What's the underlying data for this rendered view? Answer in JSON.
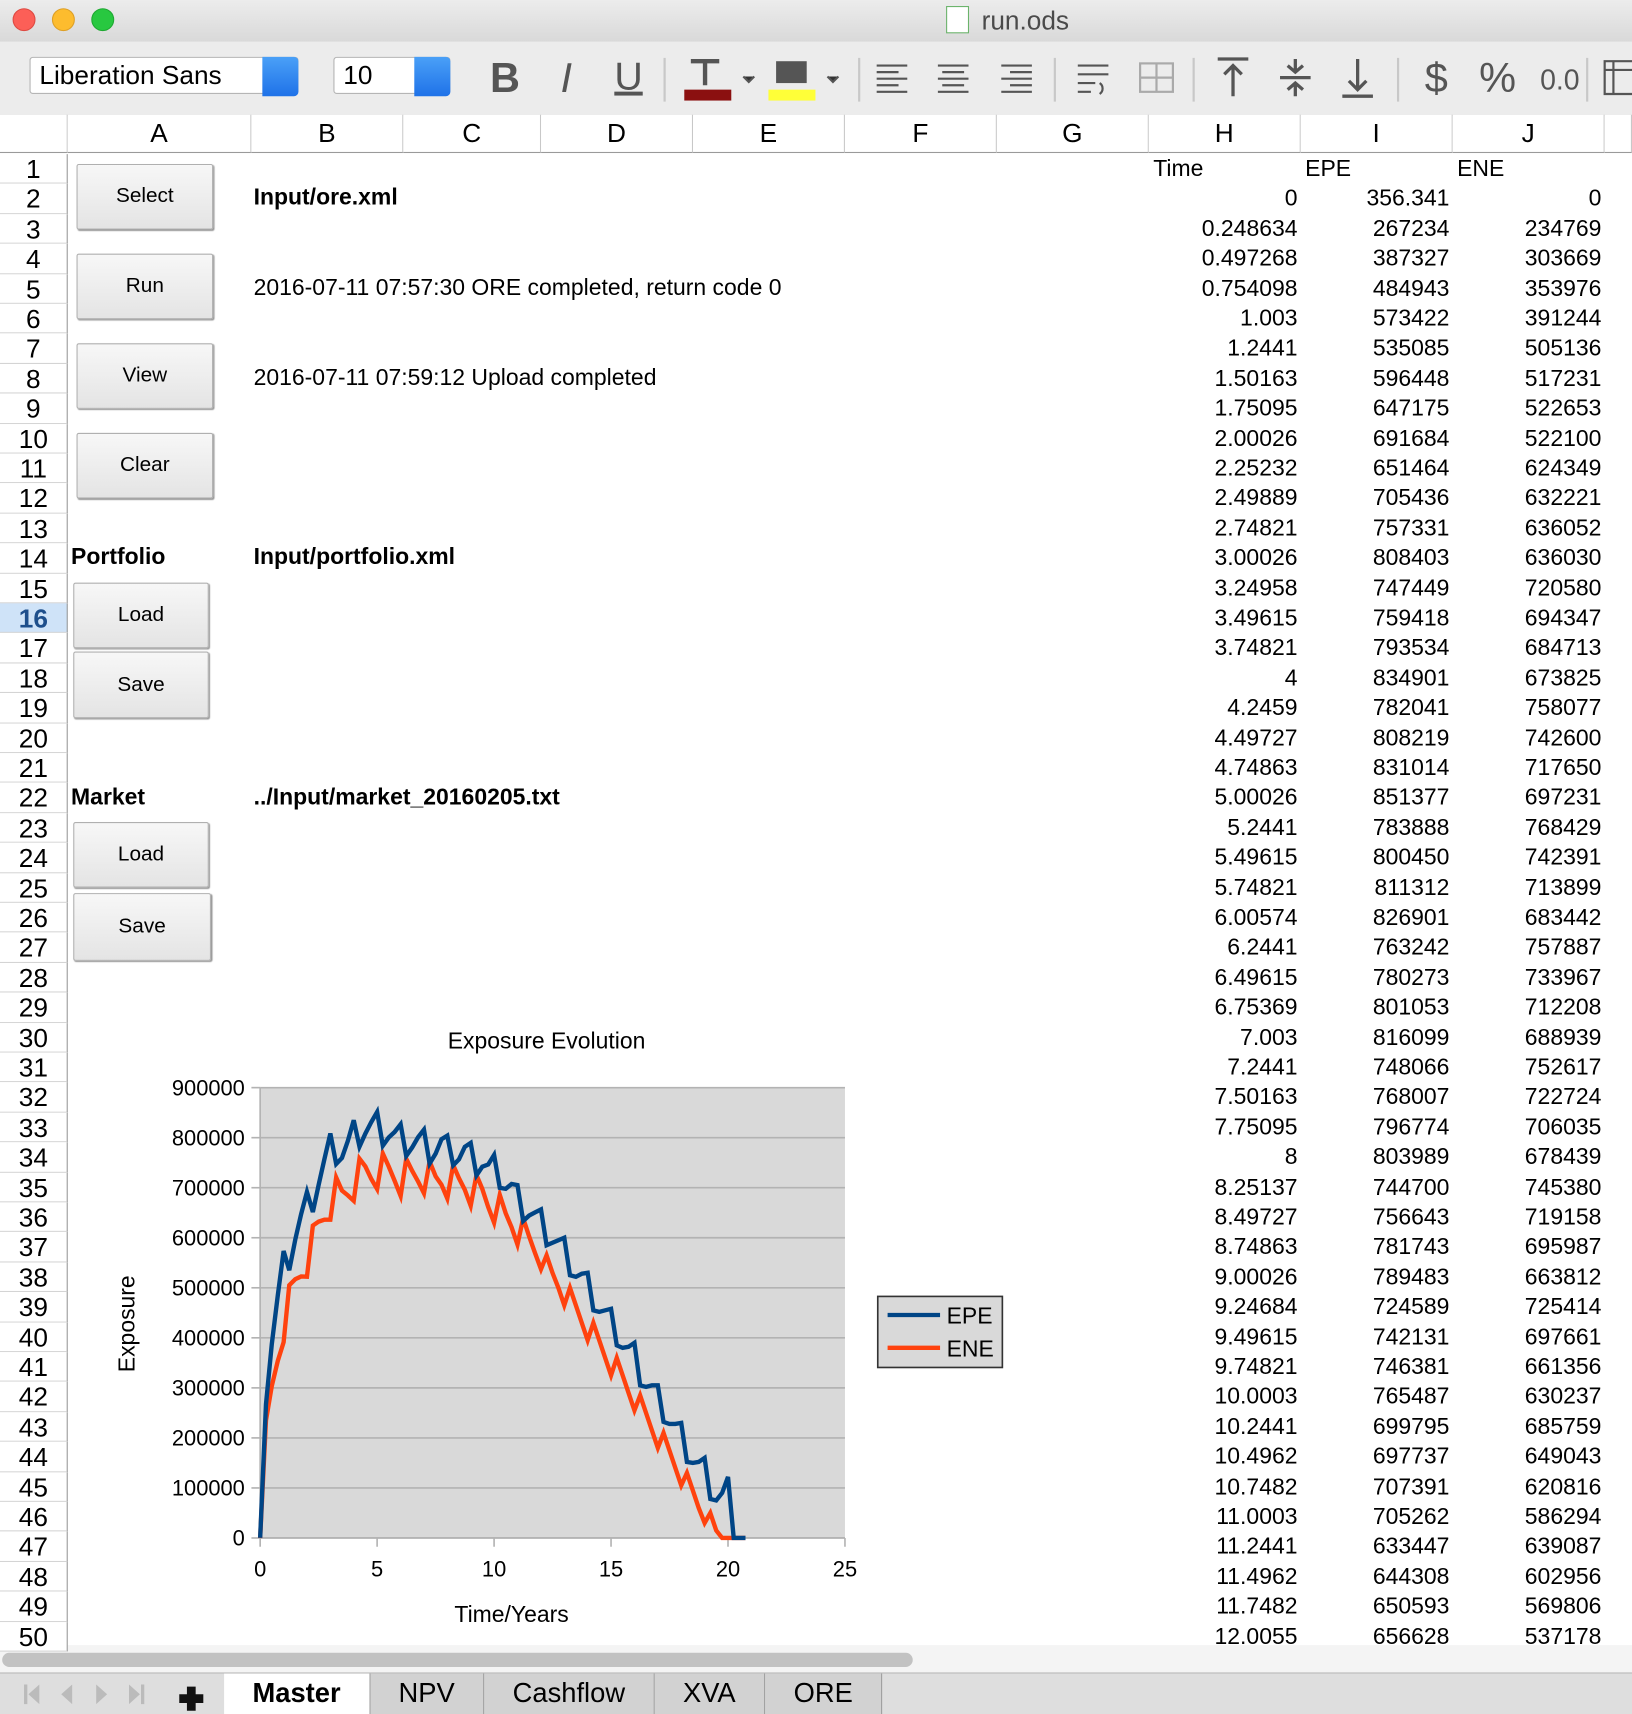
{
  "window": {
    "title": "run.ods"
  },
  "toolbar": {
    "font_name": "Liberation Sans",
    "font_size": "10",
    "icons": [
      "B",
      "I",
      "U",
      "$",
      "%",
      "0.0"
    ]
  },
  "sheet": {
    "columns": [
      "A",
      "B",
      "C",
      "D",
      "E",
      "F",
      "G",
      "H",
      "I",
      "J"
    ],
    "row_numbers": [
      1,
      2,
      3,
      4,
      5,
      6,
      7,
      8,
      9,
      10,
      11,
      12,
      13,
      14,
      15,
      16,
      17,
      18,
      19,
      20,
      21,
      22,
      23,
      24,
      25,
      26,
      27,
      28,
      29,
      30,
      31,
      32,
      33,
      34,
      35,
      36,
      37,
      38,
      39,
      40,
      41,
      42,
      43,
      44,
      45,
      46,
      47,
      48,
      49,
      50
    ],
    "selected_row": 16
  },
  "controls": {
    "select": "Select",
    "run": "Run",
    "view": "View",
    "clear": "Clear"
  },
  "ore_file": "Input/ore.xml",
  "run_status": "2016-07-11 07:57:30 ORE completed, return code 0",
  "view_status": "2016-07-11 07:59:12 Upload completed",
  "portfolio": {
    "label": "Portfolio",
    "file": "Input/portfolio.xml",
    "load": "Load",
    "save": "Save"
  },
  "market": {
    "label": "Market",
    "file": "../Input/market_20160205.txt",
    "load": "Load",
    "save": "Save"
  },
  "exposure_table": {
    "columns": [
      "Time",
      "EPE",
      "ENE"
    ],
    "rows": [
      [
        0,
        356.341,
        0
      ],
      [
        0.248634,
        267234,
        234769
      ],
      [
        0.497268,
        387327,
        303669
      ],
      [
        0.754098,
        484943,
        353976
      ],
      [
        1.003,
        573422,
        391244
      ],
      [
        1.2441,
        535085,
        505136
      ],
      [
        1.50163,
        596448,
        517231
      ],
      [
        1.75095,
        647175,
        522653
      ],
      [
        2.00026,
        691684,
        522100
      ],
      [
        2.25232,
        651464,
        624349
      ],
      [
        2.49889,
        705436,
        632221
      ],
      [
        2.74821,
        757331,
        636052
      ],
      [
        3.00026,
        808403,
        636030
      ],
      [
        3.24958,
        747449,
        720580
      ],
      [
        3.49615,
        759418,
        694347
      ],
      [
        3.74821,
        793534,
        684713
      ],
      [
        4,
        834901,
        673825
      ],
      [
        4.2459,
        782041,
        758077
      ],
      [
        4.49727,
        808219,
        742600
      ],
      [
        4.74863,
        831014,
        717650
      ],
      [
        5.00026,
        851377,
        697231
      ],
      [
        5.2441,
        783888,
        768429
      ],
      [
        5.49615,
        800450,
        742391
      ],
      [
        5.74821,
        811312,
        713899
      ],
      [
        6.00574,
        826901,
        683442
      ],
      [
        6.2441,
        763242,
        757887
      ],
      [
        6.49615,
        780273,
        733967
      ],
      [
        6.75369,
        801053,
        712208
      ],
      [
        7.003,
        816099,
        688939
      ],
      [
        7.2441,
        748066,
        752617
      ],
      [
        7.50163,
        768007,
        722724
      ],
      [
        7.75095,
        796774,
        706035
      ],
      [
        8,
        803989,
        678439
      ],
      [
        8.25137,
        744700,
        745380
      ],
      [
        8.49727,
        756643,
        719158
      ],
      [
        8.74863,
        781743,
        695987
      ],
      [
        9.00026,
        789483,
        663812
      ],
      [
        9.24684,
        724589,
        725414
      ],
      [
        9.49615,
        742131,
        697661
      ],
      [
        9.74821,
        746381,
        661356
      ],
      [
        10.0003,
        765487,
        630237
      ],
      [
        10.2441,
        699795,
        685759
      ],
      [
        10.4962,
        697737,
        649043
      ],
      [
        10.7482,
        707391,
        620816
      ],
      [
        11.0003,
        705262,
        586294
      ],
      [
        11.2441,
        633447,
        639087
      ],
      [
        11.4962,
        644308,
        602956
      ],
      [
        11.7482,
        650593,
        569806
      ],
      [
        12.0055,
        656628,
        537178
      ]
    ]
  },
  "chart_data": {
    "type": "line",
    "title": "Exposure Evolution",
    "x_label": "Time/Years",
    "y_label": "Exposure",
    "xlim": [
      0,
      25
    ],
    "xticks": [
      0,
      5,
      10,
      15,
      20,
      25
    ],
    "ylim": [
      0,
      900000
    ],
    "yticks": [
      0,
      100000,
      200000,
      300000,
      400000,
      500000,
      600000,
      700000,
      800000,
      900000
    ],
    "grid": true,
    "legend": "right",
    "x": [
      0,
      0.248634,
      0.497268,
      0.754098,
      1.003,
      1.2441,
      1.50163,
      1.75095,
      2.00026,
      2.25232,
      2.49889,
      2.74821,
      3.00026,
      3.24958,
      3.49615,
      3.74821,
      4,
      4.2459,
      4.49727,
      4.74863,
      5.00026,
      5.2441,
      5.49615,
      5.74821,
      6.00574,
      6.2441,
      6.49615,
      6.75369,
      7.003,
      7.2441,
      7.50163,
      7.75095,
      8,
      8.25137,
      8.49727,
      8.74863,
      9.00026,
      9.24684,
      9.49615,
      9.74821,
      10.0003,
      10.2441,
      10.4962,
      10.7482,
      11.0003,
      11.2441,
      11.4962,
      11.7482,
      12.0055,
      12.2441,
      12.4962,
      12.7482,
      13.0003,
      13.2441,
      13.4962,
      13.7482,
      14.0003,
      14.2441,
      14.4962,
      14.7482,
      15.0003,
      15.2441,
      15.4962,
      15.7482,
      16.0003,
      16.2441,
      16.4962,
      16.7482,
      17.0003,
      17.2441,
      17.4962,
      17.7482,
      18.0003,
      18.2441,
      18.4962,
      18.7482,
      19.0003,
      19.2441,
      19.4962,
      19.7482,
      20.0003,
      20.2441,
      20.4962,
      20.7482
    ],
    "series": [
      {
        "name": "EPE",
        "color": "#004586",
        "values": [
          356.341,
          267234,
          387327,
          484943,
          573422,
          535085,
          596448,
          647175,
          691684,
          651464,
          705436,
          757331,
          808403,
          747449,
          759418,
          793534,
          834901,
          782041,
          808219,
          831014,
          851377,
          783888,
          800450,
          811312,
          826901,
          763242,
          780273,
          801053,
          816099,
          748066,
          768007,
          796774,
          803989,
          744700,
          756643,
          781743,
          789483,
          724589,
          742131,
          746381,
          765487,
          699795,
          697737,
          707391,
          705262,
          633447,
          644308,
          650593,
          656628,
          585000,
          590000,
          595000,
          600000,
          525000,
          522000,
          528000,
          530000,
          455000,
          452000,
          455000,
          458000,
          385000,
          380000,
          382000,
          390000,
          305000,
          302000,
          305000,
          305000,
          232000,
          228000,
          228000,
          230000,
          152000,
          150000,
          152000,
          160000,
          78000,
          75000,
          90000,
          122000,
          0,
          0,
          0
        ]
      },
      {
        "name": "ENE",
        "color": "#ff420e",
        "values": [
          0,
          234769,
          303669,
          353976,
          391244,
          505136,
          517231,
          522653,
          522100,
          624349,
          632221,
          636052,
          636030,
          720580,
          694347,
          684713,
          673825,
          758077,
          742600,
          717650,
          697231,
          768429,
          742391,
          713899,
          683442,
          757887,
          733967,
          712208,
          688939,
          752617,
          722724,
          706035,
          678439,
          745380,
          719158,
          695987,
          663812,
          725414,
          697661,
          661356,
          630237,
          685759,
          649043,
          620816,
          586294,
          639087,
          602956,
          569806,
          537178,
          565000,
          530000,
          500000,
          465000,
          500000,
          465000,
          430000,
          395000,
          430000,
          395000,
          360000,
          325000,
          360000,
          325000,
          290000,
          255000,
          285000,
          250000,
          215000,
          180000,
          210000,
          175000,
          140000,
          105000,
          130000,
          95000,
          60000,
          30000,
          50000,
          15000,
          0,
          0,
          0,
          0,
          0
        ]
      }
    ]
  },
  "sheet_tabs": [
    "Master",
    "NPV",
    "Cashflow",
    "XVA",
    "ORE"
  ],
  "active_tab": "Master"
}
